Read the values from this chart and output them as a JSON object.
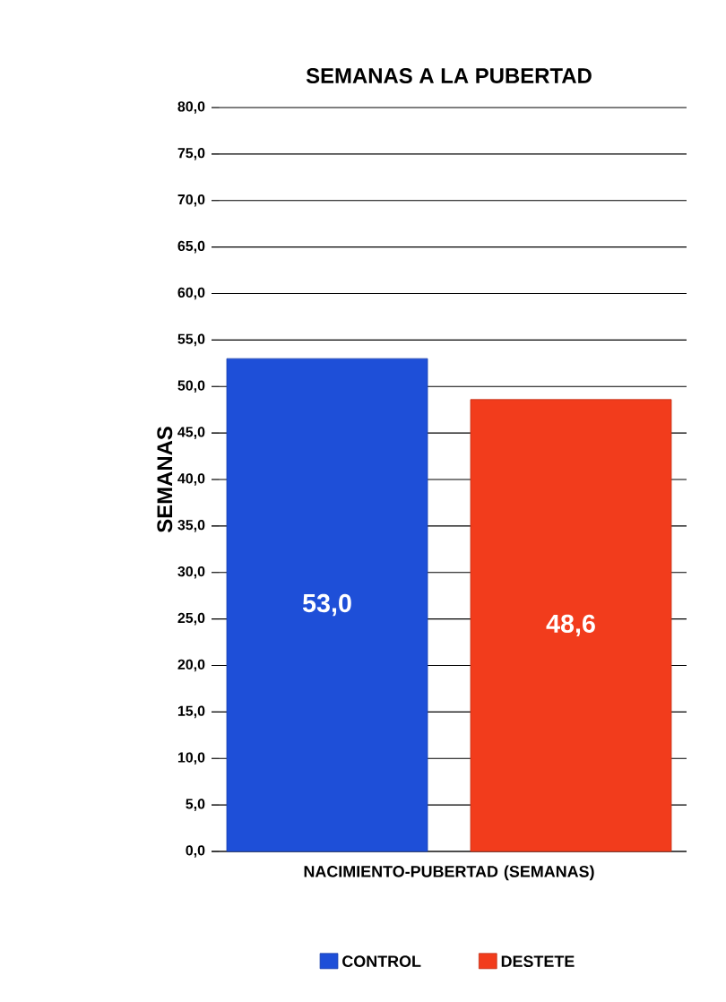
{
  "chart_data": {
    "type": "bar",
    "title": "SEMANAS A LA PUBERTAD",
    "ylabel": "SEMANAS",
    "categories": [
      "NACIMIENTO-PUBERTAD (SEMANAS)"
    ],
    "series": [
      {
        "name": "CONTROL",
        "color": "#1e4fd8",
        "values": [
          53.0
        ],
        "value_labels": [
          "53,0"
        ]
      },
      {
        "name": "DESTETE",
        "color": "#f23c1c",
        "values": [
          48.6
        ],
        "value_labels": [
          "48,6"
        ]
      }
    ],
    "ylim": [
      0,
      80
    ],
    "yticks": [
      {
        "value": 0,
        "label": "0,0"
      },
      {
        "value": 5,
        "label": "5,0"
      },
      {
        "value": 10,
        "label": "10,0"
      },
      {
        "value": 15,
        "label": "15,0"
      },
      {
        "value": 20,
        "label": "20,0"
      },
      {
        "value": 25,
        "label": "25,0"
      },
      {
        "value": 30,
        "label": "30,0"
      },
      {
        "value": 35,
        "label": "35,0"
      },
      {
        "value": 40,
        "label": "40,0"
      },
      {
        "value": 45,
        "label": "45,0"
      },
      {
        "value": 50,
        "label": "50,0"
      },
      {
        "value": 55,
        "label": "55,0"
      },
      {
        "value": 60,
        "label": "60,0"
      },
      {
        "value": 65,
        "label": "65,0"
      },
      {
        "value": 70,
        "label": "70,0"
      },
      {
        "value": 75,
        "label": "75,0"
      },
      {
        "value": 80,
        "label": "80,0"
      }
    ],
    "grid": "y",
    "legend": "bottom"
  }
}
